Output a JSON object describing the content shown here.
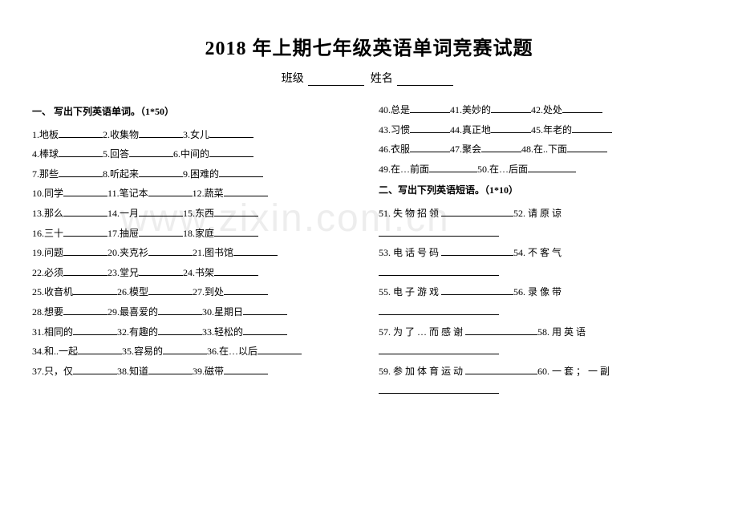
{
  "title": "2018 年上期七年级英语单词竞赛试题",
  "subtitle": {
    "class_label": "班级",
    "name_label": "姓名"
  },
  "watermark": "www.zixin.com.cn",
  "section1": {
    "heading": "一、 写出下列英语单词。（1*50）",
    "items": [
      {
        "n": "1",
        "t": "地板"
      },
      {
        "n": "2",
        "t": "收集物"
      },
      {
        "n": "3",
        "t": "女儿"
      },
      {
        "n": "4",
        "t": "棒球"
      },
      {
        "n": "5",
        "t": "回答"
      },
      {
        "n": "6",
        "t": "中间的"
      },
      {
        "n": "7",
        "t": "那些"
      },
      {
        "n": "8",
        "t": "听起来"
      },
      {
        "n": "9",
        "t": "困难的"
      },
      {
        "n": "10",
        "t": "同学"
      },
      {
        "n": "11",
        "t": "笔记本"
      },
      {
        "n": "12",
        "t": "蔬菜"
      },
      {
        "n": "13",
        "t": "那么"
      },
      {
        "n": "14",
        "t": "一月"
      },
      {
        "n": "15",
        "t": "东西"
      },
      {
        "n": "16",
        "t": "三十"
      },
      {
        "n": "17",
        "t": "抽屉"
      },
      {
        "n": "18",
        "t": "家庭"
      },
      {
        "n": "19",
        "t": "问题"
      },
      {
        "n": "20",
        "t": "夹克衫"
      },
      {
        "n": "21",
        "t": "图书馆"
      },
      {
        "n": "22",
        "t": "必须"
      },
      {
        "n": "23",
        "t": "堂兄"
      },
      {
        "n": "24",
        "t": "书架"
      },
      {
        "n": "25",
        "t": "收音机"
      },
      {
        "n": "26",
        "t": "模型"
      },
      {
        "n": "27",
        "t": "到处"
      },
      {
        "n": "28",
        "t": "想要"
      },
      {
        "n": "29",
        "t": "最喜爱的"
      },
      {
        "n": "30",
        "t": "星期日"
      },
      {
        "n": "31",
        "t": "相同的"
      },
      {
        "n": "32",
        "t": "有趣的"
      },
      {
        "n": "33",
        "t": "轻松的"
      },
      {
        "n": "34",
        "t": "和..一起"
      },
      {
        "n": "35",
        "t": "容易的"
      },
      {
        "n": "36",
        "t": "在…以后"
      },
      {
        "n": "37",
        "t": "只，仅"
      },
      {
        "n": "38",
        "t": "知道"
      },
      {
        "n": "39",
        "t": "磁带"
      },
      {
        "n": "40",
        "t": "总是"
      },
      {
        "n": "41",
        "t": "美妙的"
      },
      {
        "n": "42",
        "t": "处处"
      },
      {
        "n": "43",
        "t": "习惯"
      },
      {
        "n": "44",
        "t": "真正地"
      },
      {
        "n": "45",
        "t": "年老的"
      },
      {
        "n": "46",
        "t": "衣服"
      },
      {
        "n": "47",
        "t": "聚会"
      },
      {
        "n": "48",
        "t": "在..下面"
      },
      {
        "n": "49",
        "t": "在…前面"
      },
      {
        "n": "50",
        "t": "在…后面"
      }
    ]
  },
  "section2": {
    "heading": "二、写出下列英语短语。（1*10）",
    "lines": [
      [
        {
          "n": "51",
          "t": "失 物 招 领"
        },
        {
          "n": "52",
          "t": "请 原 谅"
        }
      ],
      [
        {
          "n": "53",
          "t": "电 话 号 码"
        },
        {
          "n": "54",
          "t": "不 客 气"
        }
      ],
      [
        {
          "n": "55",
          "t": "电 子 游 戏"
        },
        {
          "n": "56",
          "t": "录 像 带"
        }
      ],
      [
        {
          "n": "57",
          "t": "为 了 … 而 感 谢"
        },
        {
          "n": "58",
          "t": "用 英 语"
        }
      ],
      [
        {
          "n": "59",
          "t": "参 加 体 育 运 动"
        },
        {
          "n": "60",
          "t": "一 套 ； 一 副"
        }
      ]
    ]
  },
  "blank_widths": {
    "short": 55,
    "mid": 50,
    "long": 90,
    "subtitle": 70
  },
  "colors": {
    "text": "#000000",
    "bg": "#ffffff",
    "watermark": "rgba(0,0,0,0.07)"
  }
}
